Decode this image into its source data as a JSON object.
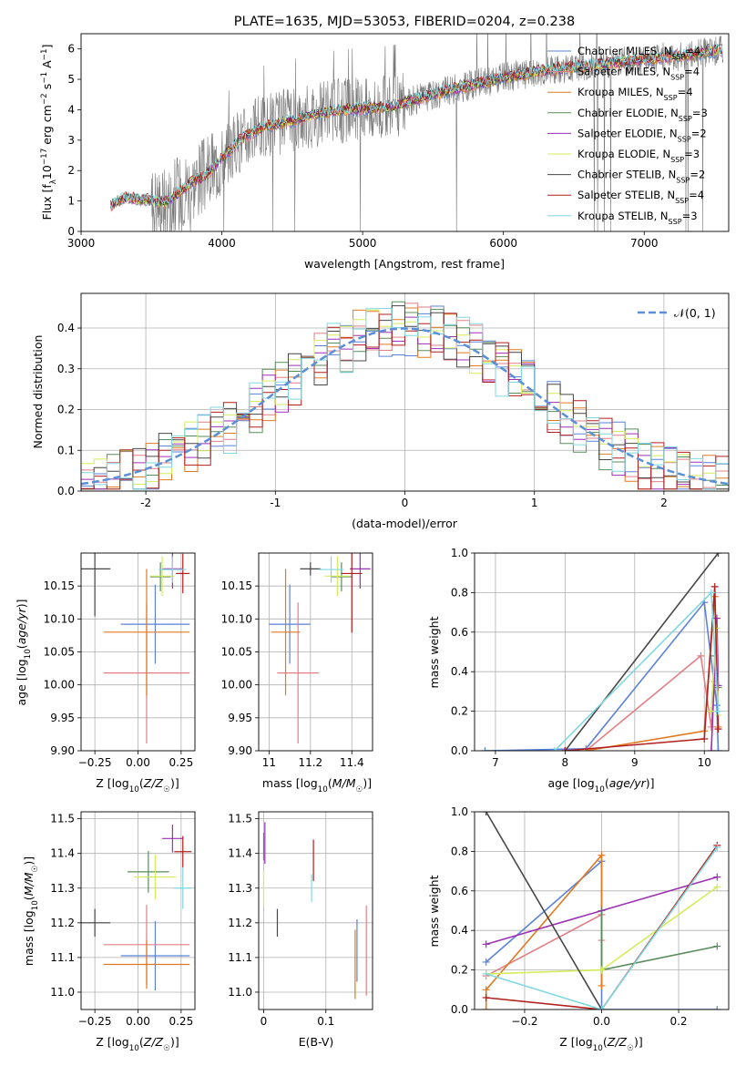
{
  "figure_title": "PLATE=1635, MJD=53053, FIBERID=0204, z=0.238",
  "colors": {
    "Chabrier MILES": "#5b82d8",
    "Salpeter MILES": "#e27f86",
    "Kroupa MILES": "#e07a22",
    "Chabrier ELODIE": "#588c5c",
    "Salpeter ELODIE": "#9c31b5",
    "Kroupa ELODIE": "#d4ec5c",
    "Chabrier STELIB": "#474747",
    "Salpeter STELIB": "#b21f1f",
    "Kroupa STELIB": "#7fd8e0",
    "data": "#7a7a7a",
    "normal_curve": "#5b8fd8",
    "grid": "#b0b0b0"
  },
  "chart_data": [
    {
      "type": "line",
      "title": "PLATE=1635, MJD=53053, FIBERID=0204, z=0.238",
      "xlabel": "wavelength [Angstrom, rest frame]",
      "ylabel": "Flux [f_λ 10^-17 erg cm^-2 s^-1 A^-1]",
      "xlim": [
        3000,
        7600
      ],
      "ylim": [
        0,
        6.5
      ],
      "xticks": [
        3000,
        4000,
        5000,
        6000,
        7000
      ],
      "yticks": [
        0,
        1,
        2,
        3,
        4,
        5,
        6
      ],
      "grid": false,
      "legend": "top-right",
      "data_range": [
        3210,
        7560
      ],
      "model_anchor_points": [
        [
          3210,
          0.85
        ],
        [
          3300,
          1.1
        ],
        [
          3450,
          1.05
        ],
        [
          3600,
          0.95
        ],
        [
          3750,
          1.5
        ],
        [
          3900,
          1.9
        ],
        [
          4000,
          2.4
        ],
        [
          4150,
          3.1
        ],
        [
          4300,
          3.45
        ],
        [
          4500,
          3.65
        ],
        [
          4700,
          3.9
        ],
        [
          5000,
          4.05
        ],
        [
          5200,
          4.1
        ],
        [
          5500,
          4.5
        ],
        [
          5800,
          4.85
        ],
        [
          6000,
          5.05
        ],
        [
          6300,
          5.3
        ],
        [
          6600,
          5.45
        ],
        [
          7000,
          5.65
        ],
        [
          7300,
          5.8
        ],
        [
          7560,
          5.95
        ]
      ],
      "legend_entries": [
        {
          "model": "Chabrier MILES",
          "label": "Chabrier MILES, N",
          "sub": "SSP",
          "suffix": "=4"
        },
        {
          "model": "Salpeter MILES",
          "label": "Salpeter MILES, N",
          "sub": "SSP",
          "suffix": "=4"
        },
        {
          "model": "Kroupa MILES",
          "label": "Kroupa MILES, N",
          "sub": "SSP",
          "suffix": "=4"
        },
        {
          "model": "Chabrier ELODIE",
          "label": "Chabrier ELODIE, N",
          "sub": "SSP",
          "suffix": "=3"
        },
        {
          "model": "Salpeter ELODIE",
          "label": "Salpeter ELODIE, N",
          "sub": "SSP",
          "suffix": "=2"
        },
        {
          "model": "Kroupa ELODIE",
          "label": "Kroupa ELODIE, N",
          "sub": "SSP",
          "suffix": "=3"
        },
        {
          "model": "Chabrier STELIB",
          "label": "Chabrier STELIB, N",
          "sub": "SSP",
          "suffix": "=2"
        },
        {
          "model": "Salpeter STELIB",
          "label": "Salpeter STELIB, N",
          "sub": "SSP",
          "suffix": "=4"
        },
        {
          "model": "Kroupa STELIB",
          "label": "Kroupa STELIB, N",
          "sub": "SSP",
          "suffix": "=3"
        }
      ]
    },
    {
      "type": "line",
      "xlabel": "(data-model)/error",
      "ylabel": "Normed distribution",
      "xlim": [
        -2.5,
        2.5
      ],
      "ylim": [
        0,
        0.485
      ],
      "xticks": [
        -2,
        -1,
        0,
        1,
        2
      ],
      "yticks": [
        0.0,
        0.1,
        0.2,
        0.3,
        0.4
      ],
      "grid": true,
      "legend": "top-right",
      "legend_label": "𝒩(0, 1)",
      "bins": 50,
      "histograms": "one step histogram per model, values scattered around N(0,1) within ±0.07"
    },
    {
      "type": "scatter",
      "xlabel": "Z [log10(Z/Z☉)]",
      "ylabel": "age  [log10(age/yr)]",
      "xlim": [
        -0.33,
        0.33
      ],
      "ylim": [
        9.9,
        10.2
      ],
      "xticks": [
        -0.25,
        0.0,
        0.25
      ],
      "xticklabels": [
        "−0.25",
        "0.00",
        "0.25"
      ],
      "yticks": [
        9.9,
        9.95,
        10.0,
        10.05,
        10.1,
        10.15
      ],
      "grid": true,
      "points": [
        {
          "model": "Chabrier MILES",
          "x": 0.1,
          "xerr": 0.2,
          "y": 10.092,
          "yerr": 0.06
        },
        {
          "model": "Salpeter MILES",
          "x": 0.05,
          "xerr": 0.25,
          "y": 10.018,
          "yerr": 0.107
        },
        {
          "model": "Kroupa MILES",
          "x": 0.05,
          "xerr": 0.25,
          "y": 10.08,
          "yerr": 0.096
        },
        {
          "model": "Chabrier ELODIE",
          "x": 0.13,
          "xerr": 0.06,
          "y": 10.164,
          "yerr": 0.022
        },
        {
          "model": "Salpeter ELODIE",
          "x": 0.2,
          "xerr": 0.06,
          "y": 10.176,
          "yerr": 0.03
        },
        {
          "model": "Kroupa ELODIE",
          "x": 0.14,
          "xerr": 0.07,
          "y": 10.165,
          "yerr": 0.03
        },
        {
          "model": "Chabrier STELIB",
          "x": -0.25,
          "xerr": 0.09,
          "y": 10.176,
          "yerr": 0.072
        },
        {
          "model": "Salpeter STELIB",
          "x": 0.26,
          "xerr": 0.04,
          "y": 10.169,
          "yerr": 0.03
        },
        {
          "model": "Kroupa STELIB",
          "x": 0.2,
          "xerr": 0.08,
          "y": 10.175,
          "yerr": 0.02
        }
      ]
    },
    {
      "type": "scatter",
      "xlabel": "mass [log10(M/M☉)]",
      "xlim": [
        10.95,
        11.5
      ],
      "ylim": [
        9.9,
        10.2
      ],
      "xticks": [
        11.0,
        11.2,
        11.4
      ],
      "yticks": [
        9.9,
        9.95,
        10.0,
        10.05,
        10.1,
        10.15
      ],
      "grid": true,
      "points": [
        {
          "model": "Chabrier MILES",
          "x": 11.1,
          "xerr": 0.1,
          "y": 10.092,
          "yerr": 0.06
        },
        {
          "model": "Salpeter MILES",
          "x": 11.14,
          "xerr": 0.1,
          "y": 10.018,
          "yerr": 0.107
        },
        {
          "model": "Kroupa MILES",
          "x": 11.08,
          "xerr": 0.07,
          "y": 10.08,
          "yerr": 0.096
        },
        {
          "model": "Chabrier ELODIE",
          "x": 11.35,
          "xerr": 0.05,
          "y": 10.164,
          "yerr": 0.022
        },
        {
          "model": "Salpeter ELODIE",
          "x": 11.44,
          "xerr": 0.05,
          "y": 10.176,
          "yerr": 0.03
        },
        {
          "model": "Kroupa ELODIE",
          "x": 11.33,
          "xerr": 0.06,
          "y": 10.165,
          "yerr": 0.03
        },
        {
          "model": "Chabrier STELIB",
          "x": 11.2,
          "xerr": 0.05,
          "y": 10.176,
          "yerr": 0.01
        },
        {
          "model": "Salpeter STELIB",
          "x": 11.4,
          "xerr": 0.05,
          "y": 10.169,
          "yerr": 0.09
        },
        {
          "model": "Kroupa STELIB",
          "x": 11.3,
          "xerr": 0.06,
          "y": 10.175,
          "yerr": 0.02
        }
      ]
    },
    {
      "type": "line",
      "xlabel": "age  [log10(age/yr)]",
      "ylabel": "mass weight",
      "xlim": [
        6.7,
        10.35
      ],
      "ylim": [
        0,
        1.0
      ],
      "xticks": [
        7,
        8,
        9,
        10
      ],
      "yticks": [
        0.0,
        0.2,
        0.4,
        0.6,
        0.8,
        1.0
      ],
      "grid": true,
      "series": [
        {
          "model": "Chabrier MILES",
          "x": [
            6.85,
            8.3,
            10.0,
            10.18,
            10.2
          ],
          "y": [
            0.0,
            0.01,
            0.75,
            0.23,
            0.0
          ]
        },
        {
          "model": "Salpeter MILES",
          "x": [
            8.3,
            9.95,
            10.1,
            10.15
          ],
          "y": [
            0.0,
            0.48,
            0.12,
            0.35
          ]
        },
        {
          "model": "Kroupa MILES",
          "x": [
            8.3,
            10.0,
            10.15,
            10.2
          ],
          "y": [
            0.0,
            0.1,
            0.78,
            0.12
          ]
        },
        {
          "model": "Chabrier ELODIE",
          "x": [
            10.1,
            10.15,
            10.2
          ],
          "y": [
            0.2,
            0.48,
            0.32
          ]
        },
        {
          "model": "Salpeter ELODIE",
          "x": [
            10.1,
            10.18,
            10.2
          ],
          "y": [
            0.0,
            0.67,
            0.33
          ]
        },
        {
          "model": "Kroupa ELODIE",
          "x": [
            10.1,
            10.17,
            10.2
          ],
          "y": [
            0.2,
            0.62,
            0.18
          ]
        },
        {
          "model": "Chabrier STELIB",
          "x": [
            8.0,
            10.2
          ],
          "y": [
            0.0,
            1.0
          ]
        },
        {
          "model": "Salpeter STELIB",
          "x": [
            8.0,
            10.0,
            10.15,
            10.2
          ],
          "y": [
            0.0,
            0.06,
            0.83,
            0.11
          ]
        },
        {
          "model": "Kroupa STELIB",
          "x": [
            7.85,
            10.1,
            10.2
          ],
          "y": [
            0.0,
            0.8,
            0.2
          ]
        }
      ]
    },
    {
      "type": "scatter",
      "xlabel": "Z [log10(Z/Z☉)]",
      "ylabel": "mass [log10(M/M☉)]",
      "xlim": [
        -0.33,
        0.33
      ],
      "ylim": [
        10.95,
        11.52
      ],
      "xticks": [
        -0.25,
        0.0,
        0.25
      ],
      "xticklabels": [
        "−0.25",
        "0.00",
        "0.25"
      ],
      "yticks": [
        11.0,
        11.1,
        11.2,
        11.3,
        11.4,
        11.5
      ],
      "grid": true,
      "points": [
        {
          "model": "Chabrier MILES",
          "x": 0.1,
          "xerr": 0.2,
          "y": 11.105,
          "yerr": 0.1
        },
        {
          "model": "Salpeter MILES",
          "x": 0.05,
          "xerr": 0.25,
          "y": 11.137,
          "yerr": 0.115
        },
        {
          "model": "Kroupa MILES",
          "x": 0.05,
          "xerr": 0.25,
          "y": 11.08,
          "yerr": 0.07
        },
        {
          "model": "Chabrier ELODIE",
          "x": 0.06,
          "xerr": 0.12,
          "y": 11.347,
          "yerr": 0.06
        },
        {
          "model": "Salpeter ELODIE",
          "x": 0.2,
          "xerr": 0.06,
          "y": 11.443,
          "yerr": 0.04
        },
        {
          "model": "Kroupa ELODIE",
          "x": 0.1,
          "xerr": 0.12,
          "y": 11.332,
          "yerr": 0.065
        },
        {
          "model": "Chabrier STELIB",
          "x": -0.25,
          "xerr": 0.09,
          "y": 11.2,
          "yerr": 0.04
        },
        {
          "model": "Salpeter STELIB",
          "x": 0.26,
          "xerr": 0.05,
          "y": 11.405,
          "yerr": 0.045
        },
        {
          "model": "Kroupa STELIB",
          "x": 0.26,
          "xerr": 0.05,
          "y": 11.3,
          "yerr": 0.06
        }
      ]
    },
    {
      "type": "scatter",
      "xlabel": "E(B-V)",
      "xlim": [
        -0.008,
        0.175
      ],
      "ylim": [
        10.95,
        11.52
      ],
      "xticks": [
        0.0,
        0.1
      ],
      "yticks": [
        11.0,
        11.1,
        11.2,
        11.3,
        11.4,
        11.5
      ],
      "grid": true,
      "points": [
        {
          "model": "Chabrier MILES",
          "x": 0.15,
          "y": 11.12,
          "yerr": 0.09
        },
        {
          "model": "Salpeter MILES",
          "x": 0.165,
          "y": 11.12,
          "yerr": 0.13
        },
        {
          "model": "Kroupa MILES",
          "x": 0.147,
          "y": 11.08,
          "yerr": 0.1
        },
        {
          "model": "Chabrier ELODIE",
          "x": 0.0,
          "y": 11.42,
          "yerr": 0.04
        },
        {
          "model": "Salpeter ELODIE",
          "x": 0.002,
          "y": 11.43,
          "yerr": 0.06
        },
        {
          "model": "Kroupa ELODIE",
          "x": 0.0,
          "y": 11.3,
          "yerr": 0.05
        },
        {
          "model": "Chabrier STELIB",
          "x": 0.022,
          "y": 11.2,
          "yerr": 0.04
        },
        {
          "model": "Salpeter STELIB",
          "x": 0.08,
          "y": 11.38,
          "yerr": 0.06
        },
        {
          "model": "Kroupa STELIB",
          "x": 0.077,
          "y": 11.3,
          "yerr": 0.04
        }
      ]
    },
    {
      "type": "line",
      "xlabel": "Z [log10(Z/Z☉)]",
      "ylabel": "mass weight",
      "xlim": [
        -0.33,
        0.33
      ],
      "ylim": [
        0,
        1.0
      ],
      "xticks": [
        -0.2,
        0.0,
        0.2
      ],
      "xticklabels": [
        "−0.2",
        "0.0",
        "0.2"
      ],
      "yticks": [
        0.0,
        0.2,
        0.4,
        0.6,
        0.8,
        1.0
      ],
      "grid": true,
      "series": [
        {
          "model": "Chabrier MILES",
          "x": [
            -0.3,
            0.0,
            0.0,
            0.3
          ],
          "y": [
            0.24,
            0.75,
            0.0,
            0.0
          ]
        },
        {
          "model": "Salpeter MILES",
          "x": [
            -0.3,
            0.0,
            0.0
          ],
          "y": [
            0.17,
            0.48,
            0.35
          ]
        },
        {
          "model": "Kroupa MILES",
          "x": [
            -0.3,
            -0.3,
            0.0,
            0.0
          ],
          "y": [
            0.0,
            0.1,
            0.78,
            0.12
          ]
        },
        {
          "model": "Chabrier ELODIE",
          "x": [
            0.0,
            0.0,
            0.3
          ],
          "y": [
            0.5,
            0.2,
            0.32
          ]
        },
        {
          "model": "Salpeter ELODIE",
          "x": [
            -0.3,
            0.3
          ],
          "y": [
            0.33,
            0.67
          ]
        },
        {
          "model": "Kroupa ELODIE",
          "x": [
            -0.3,
            0.0,
            0.3
          ],
          "y": [
            0.18,
            0.2,
            0.62
          ]
        },
        {
          "model": "Chabrier STELIB",
          "x": [
            -0.3,
            0.0
          ],
          "y": [
            1.0,
            0.0
          ]
        },
        {
          "model": "Salpeter STELIB",
          "x": [
            -0.3,
            0.0,
            0.3
          ],
          "y": [
            0.06,
            0.0,
            0.83
          ]
        },
        {
          "model": "Kroupa STELIB",
          "x": [
            -0.3,
            0.0,
            0.3
          ],
          "y": [
            0.18,
            0.0,
            0.82
          ]
        }
      ]
    }
  ]
}
